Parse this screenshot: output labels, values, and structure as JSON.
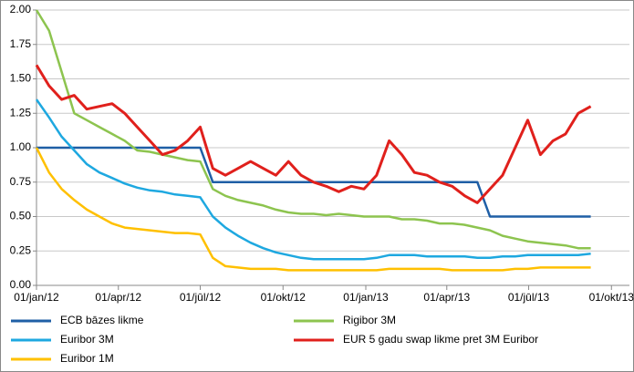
{
  "chart_data": {
    "type": "line",
    "x": [
      0,
      14,
      28,
      42,
      56,
      70,
      84,
      98,
      112,
      126,
      140,
      154,
      168,
      182,
      196,
      210,
      224,
      238,
      252,
      266,
      280,
      294,
      308,
      322,
      336,
      350,
      364,
      378,
      392,
      406,
      420,
      434,
      448,
      462,
      476,
      490,
      504,
      518,
      532,
      546,
      560,
      574,
      588,
      602,
      616
    ],
    "xlim": [
      0,
      659
    ],
    "xticks": [
      {
        "value": 0,
        "label": "01/jan/12"
      },
      {
        "value": 91,
        "label": "01/apr/12"
      },
      {
        "value": 182,
        "label": "01/jūl/12"
      },
      {
        "value": 274,
        "label": "01/okt/12"
      },
      {
        "value": 366,
        "label": "01/jan/13"
      },
      {
        "value": 456,
        "label": "01/apr/13"
      },
      {
        "value": 547,
        "label": "01/jūl/13"
      },
      {
        "value": 639,
        "label": "01/okt/13"
      }
    ],
    "ylim": [
      0,
      2
    ],
    "yticks": [
      {
        "value": 0,
        "label": "0.00"
      },
      {
        "value": 0.25,
        "label": "0.25"
      },
      {
        "value": 0.5,
        "label": "0.50"
      },
      {
        "value": 0.75,
        "label": "0.75"
      },
      {
        "value": 1,
        "label": "1.00"
      },
      {
        "value": 1.25,
        "label": "1.25"
      },
      {
        "value": 1.5,
        "label": "1.50"
      },
      {
        "value": 1.75,
        "label": "1.75"
      },
      {
        "value": 2,
        "label": "2.00"
      }
    ],
    "grid": true,
    "series": [
      {
        "name": "ECB bāzes likme",
        "color": "#1f5fa6",
        "values": [
          1,
          1,
          1,
          1,
          1,
          1,
          1,
          1,
          1,
          1,
          1,
          1,
          1,
          1,
          0.75,
          0.75,
          0.75,
          0.75,
          0.75,
          0.75,
          0.75,
          0.75,
          0.75,
          0.75,
          0.75,
          0.75,
          0.75,
          0.75,
          0.75,
          0.75,
          0.75,
          0.75,
          0.75,
          0.75,
          0.75,
          0.75,
          0.5,
          0.5,
          0.5,
          0.5,
          0.5,
          0.5,
          0.5,
          0.5,
          0.5
        ]
      },
      {
        "name": "Rigibor 3M",
        "color": "#8dc44f",
        "values": [
          2,
          1.85,
          1.55,
          1.25,
          1.2,
          1.15,
          1.1,
          1.05,
          0.98,
          0.97,
          0.95,
          0.93,
          0.91,
          0.9,
          0.7,
          0.65,
          0.62,
          0.6,
          0.58,
          0.55,
          0.53,
          0.52,
          0.52,
          0.51,
          0.52,
          0.51,
          0.5,
          0.5,
          0.5,
          0.48,
          0.48,
          0.47,
          0.45,
          0.45,
          0.44,
          0.42,
          0.4,
          0.36,
          0.34,
          0.32,
          0.31,
          0.3,
          0.29,
          0.27,
          0.27
        ]
      },
      {
        "name": "Euribor 3M",
        "color": "#1ea8e0",
        "values": [
          1.35,
          1.22,
          1.08,
          0.98,
          0.88,
          0.82,
          0.78,
          0.74,
          0.71,
          0.69,
          0.68,
          0.66,
          0.65,
          0.64,
          0.5,
          0.42,
          0.36,
          0.31,
          0.27,
          0.24,
          0.22,
          0.2,
          0.19,
          0.19,
          0.19,
          0.19,
          0.19,
          0.2,
          0.22,
          0.22,
          0.22,
          0.21,
          0.21,
          0.21,
          0.21,
          0.2,
          0.2,
          0.21,
          0.21,
          0.22,
          0.22,
          0.22,
          0.22,
          0.22,
          0.23
        ]
      },
      {
        "name": "EUR 5 gadu swap likme pret 3M Euribor",
        "color": "#e0201c",
        "values": [
          1.6,
          1.45,
          1.35,
          1.38,
          1.28,
          1.3,
          1.32,
          1.25,
          1.15,
          1.05,
          0.95,
          0.98,
          1.05,
          1.15,
          0.85,
          0.8,
          0.85,
          0.9,
          0.85,
          0.8,
          0.9,
          0.8,
          0.75,
          0.72,
          0.68,
          0.72,
          0.7,
          0.8,
          1.05,
          0.95,
          0.82,
          0.8,
          0.75,
          0.72,
          0.65,
          0.6,
          0.7,
          0.8,
          1,
          1.2,
          0.95,
          1.05,
          1.1,
          1.25,
          1.3
        ]
      },
      {
        "name": "Euribor 1M",
        "color": "#ffc000",
        "values": [
          1,
          0.82,
          0.7,
          0.62,
          0.55,
          0.5,
          0.45,
          0.42,
          0.41,
          0.4,
          0.39,
          0.38,
          0.38,
          0.37,
          0.2,
          0.14,
          0.13,
          0.12,
          0.12,
          0.12,
          0.11,
          0.11,
          0.11,
          0.11,
          0.11,
          0.11,
          0.11,
          0.11,
          0.12,
          0.12,
          0.12,
          0.12,
          0.12,
          0.11,
          0.11,
          0.11,
          0.11,
          0.11,
          0.12,
          0.12,
          0.13,
          0.13,
          0.13,
          0.13,
          0.13
        ]
      }
    ]
  }
}
